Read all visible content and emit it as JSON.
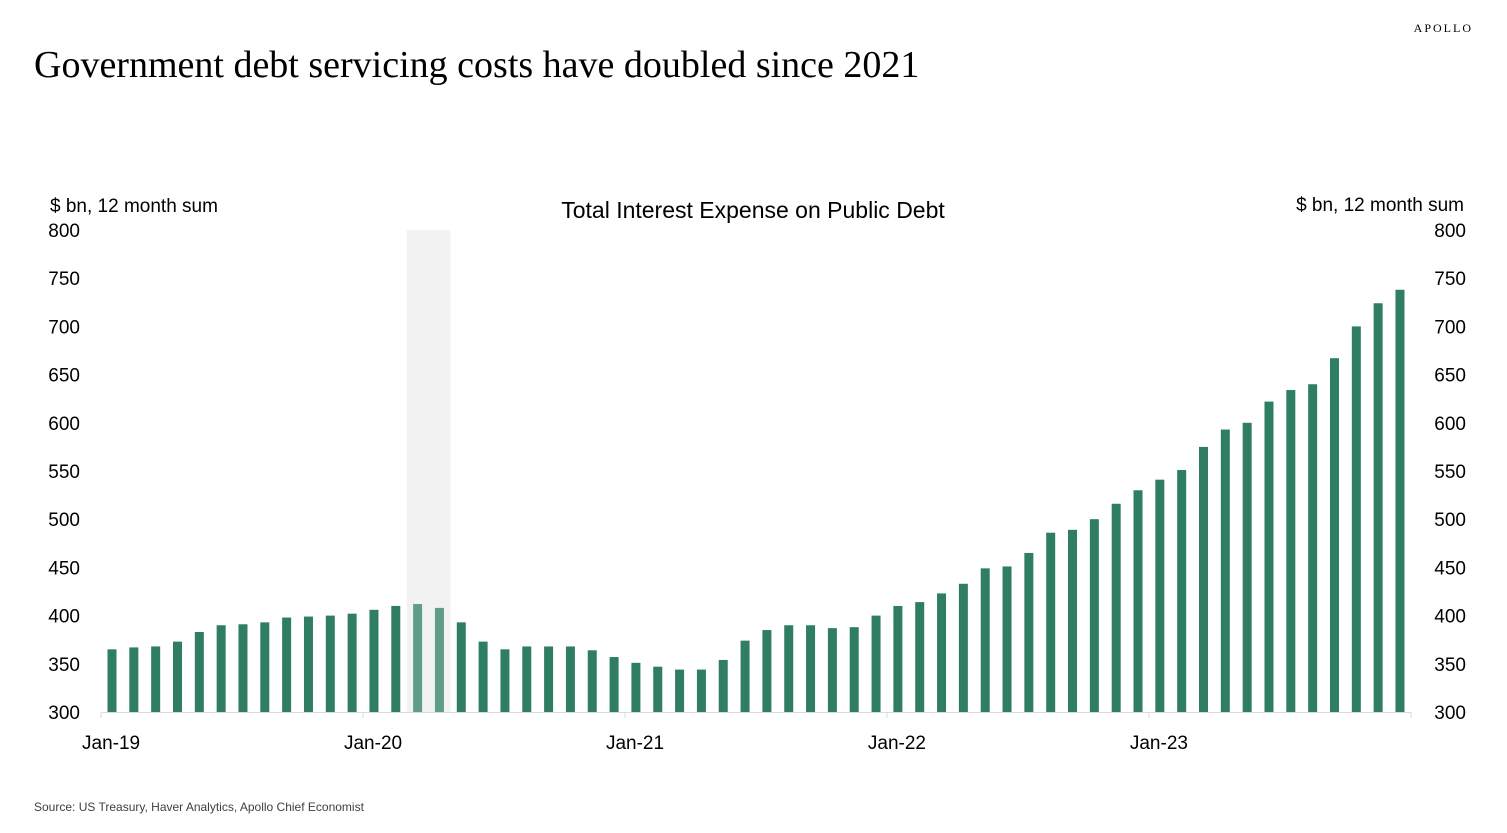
{
  "header": {
    "brand": "APOLLO",
    "headline": "Government debt servicing costs have doubled since 2021"
  },
  "footer": {
    "source": "Source: US Treasury, Haver Analytics, Apollo Chief Economist"
  },
  "colors": {
    "bar": "#2e7d64",
    "bar_highlight": "#5e9e88",
    "recession_shade": "#f2f2f2",
    "axis": "#d9d9d9"
  },
  "chart_data": {
    "type": "bar",
    "title": "Total Interest Expense on Public Debt",
    "ylabel_left": "$ bn, 12 month sum",
    "ylabel_right": "$ bn, 12 month sum",
    "ylim": [
      300,
      800
    ],
    "yticks": [
      300,
      350,
      400,
      450,
      500,
      550,
      600,
      650,
      700,
      750,
      800
    ],
    "xtick_labels": [
      "Jan-19",
      "Jan-20",
      "Jan-21",
      "Jan-22",
      "Jan-23"
    ],
    "shaded_region": {
      "from": "Mar-20",
      "to": "Apr-20"
    },
    "categories": [
      "Jan-19",
      "Feb-19",
      "Mar-19",
      "Apr-19",
      "May-19",
      "Jun-19",
      "Jul-19",
      "Aug-19",
      "Sep-19",
      "Oct-19",
      "Nov-19",
      "Dec-19",
      "Jan-20",
      "Feb-20",
      "Mar-20",
      "Apr-20",
      "May-20",
      "Jun-20",
      "Jul-20",
      "Aug-20",
      "Sep-20",
      "Oct-20",
      "Nov-20",
      "Dec-20",
      "Jan-21",
      "Feb-21",
      "Mar-21",
      "Apr-21",
      "May-21",
      "Jun-21",
      "Jul-21",
      "Aug-21",
      "Sep-21",
      "Oct-21",
      "Nov-21",
      "Dec-21",
      "Jan-22",
      "Feb-22",
      "Mar-22",
      "Apr-22",
      "May-22",
      "Jun-22",
      "Jul-22",
      "Aug-22",
      "Sep-22",
      "Oct-22",
      "Nov-22",
      "Dec-22",
      "Jan-23",
      "Feb-23",
      "Mar-23",
      "Apr-23",
      "May-23",
      "Jun-23",
      "Jul-23",
      "Aug-23",
      "Sep-23",
      "Oct-23",
      "Nov-23",
      "Dec-23"
    ],
    "values": [
      365,
      367,
      368,
      373,
      383,
      390,
      391,
      393,
      398,
      399,
      400,
      402,
      406,
      410,
      412,
      408,
      393,
      373,
      365,
      368,
      368,
      368,
      364,
      357,
      351,
      347,
      344,
      344,
      354,
      374,
      385,
      390,
      390,
      387,
      388,
      400,
      410,
      414,
      423,
      433,
      449,
      451,
      465,
      486,
      489,
      500,
      516,
      530,
      541,
      551,
      575,
      593,
      600,
      622,
      634,
      640,
      667,
      700,
      724,
      738
    ]
  }
}
